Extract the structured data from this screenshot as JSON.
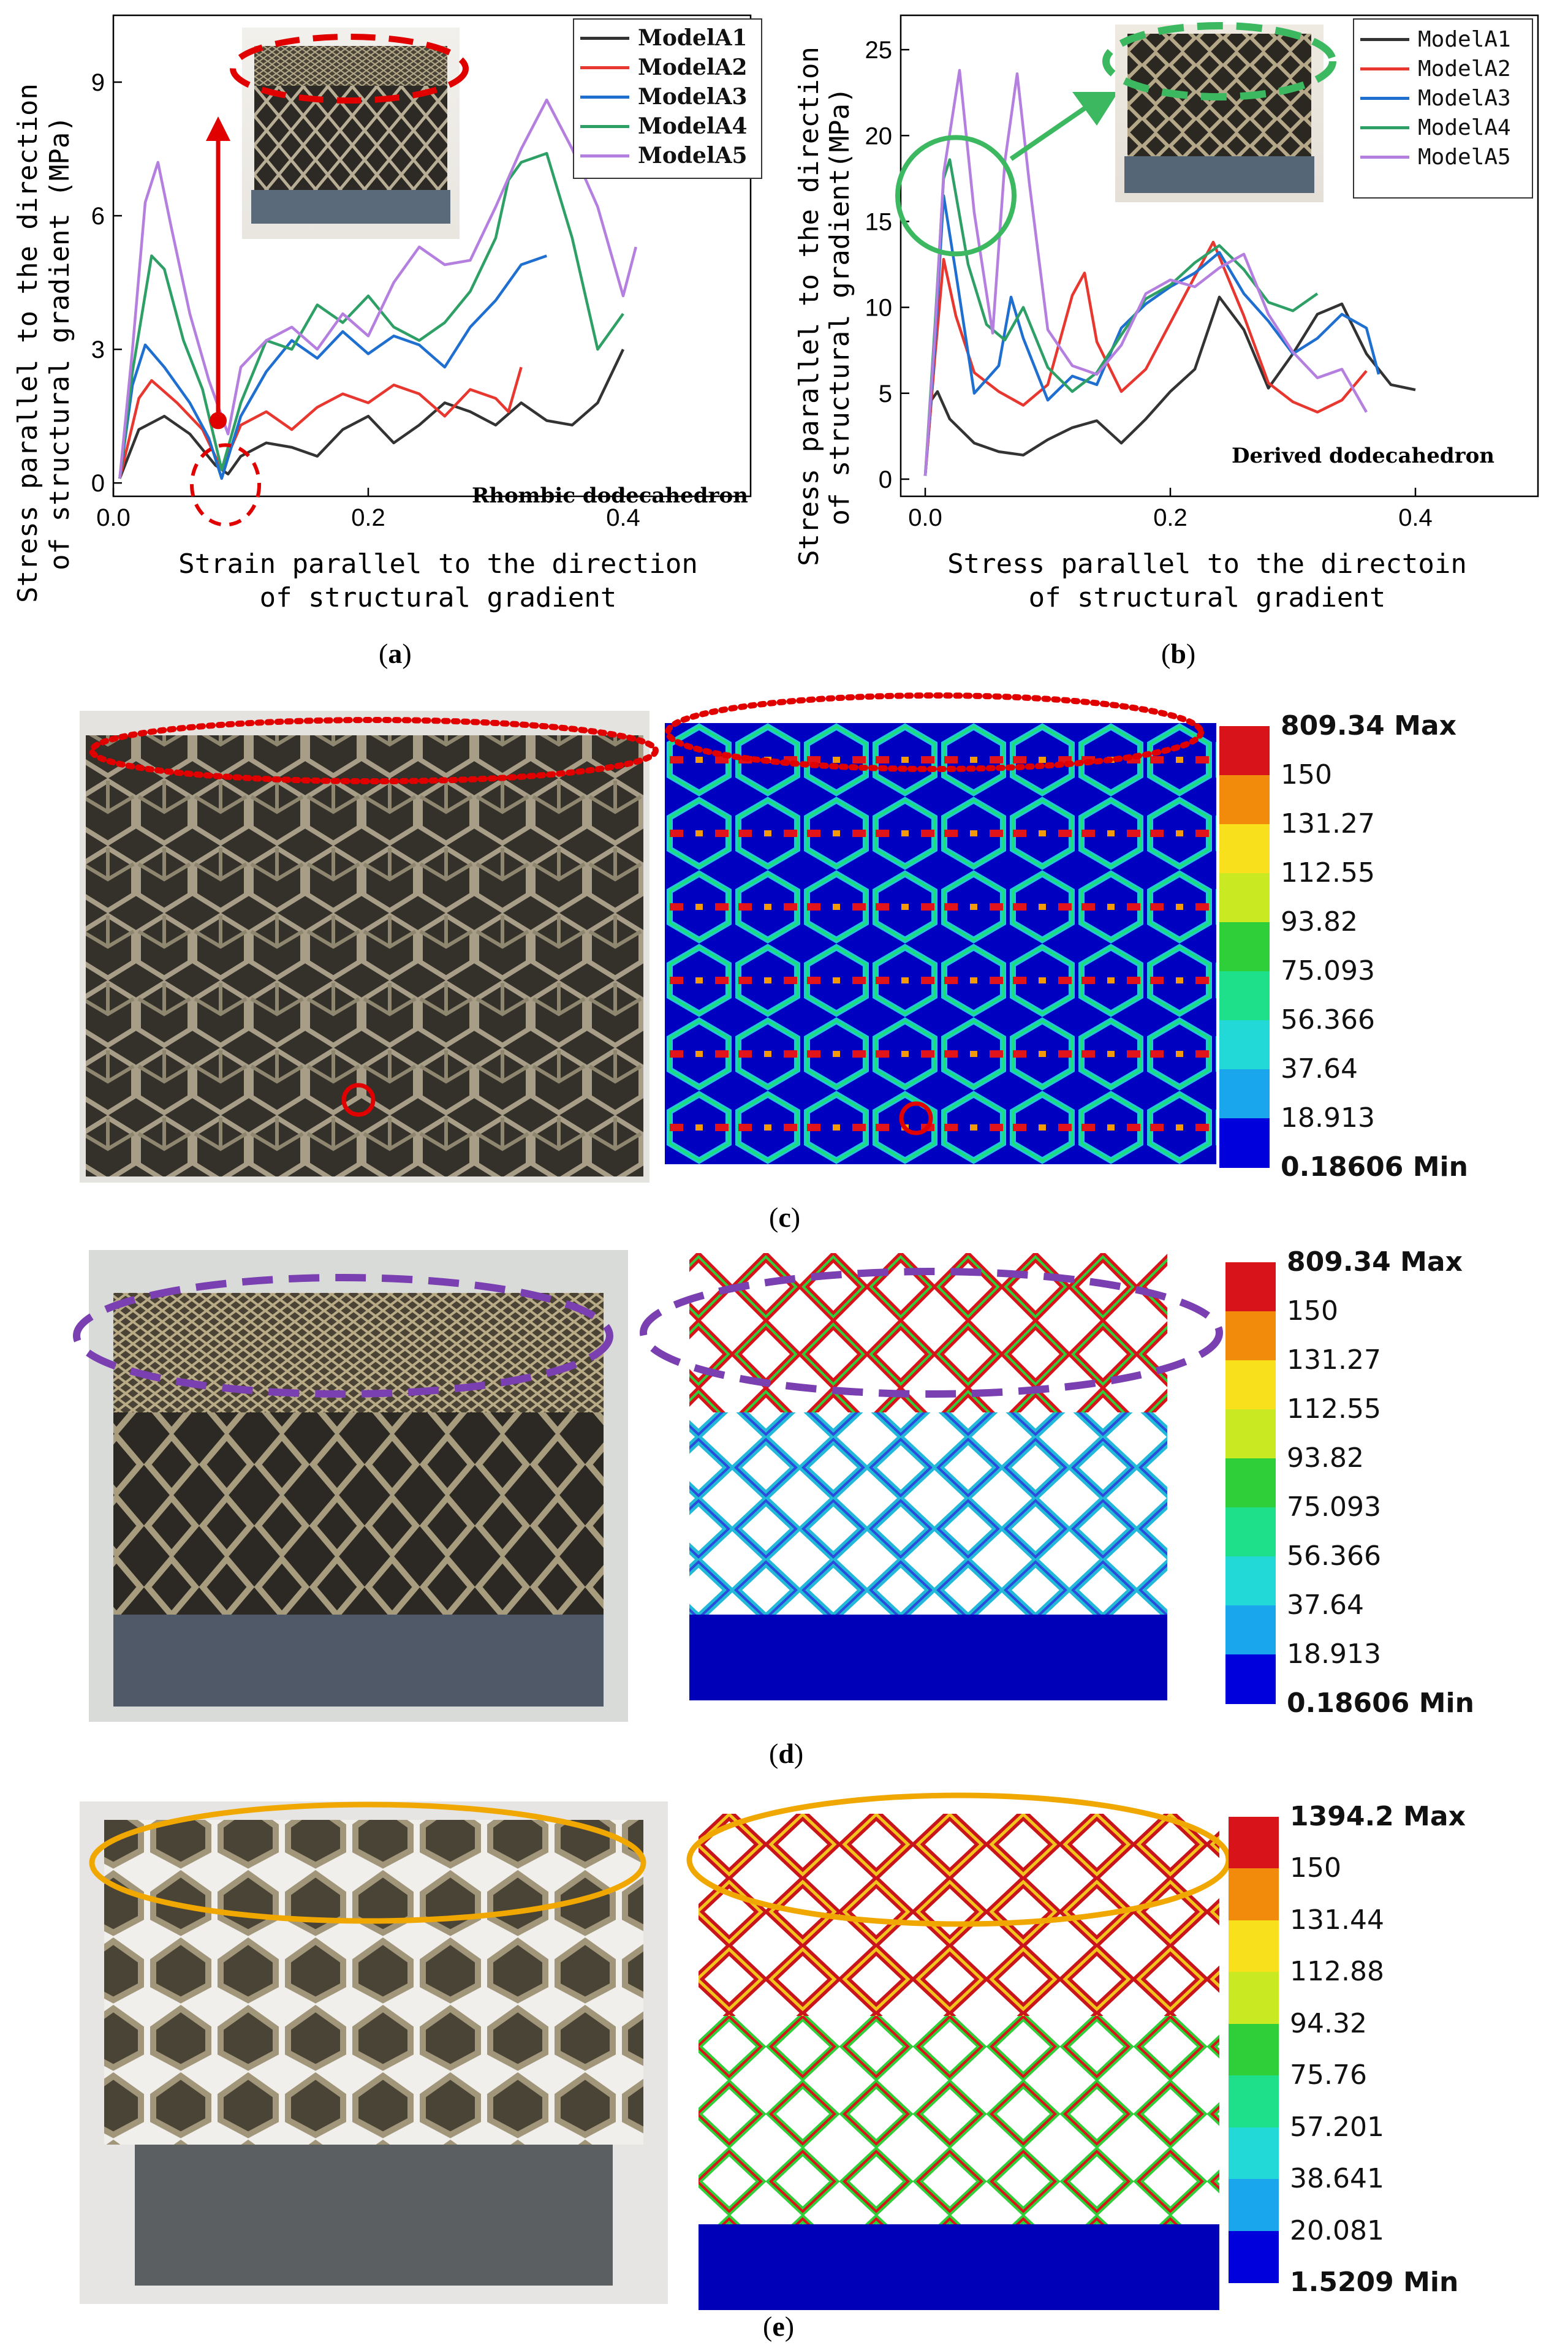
{
  "charts": [
    {
      "id": "a",
      "type": "line",
      "ylabel_line1": "Stress parallel to the direction",
      "ylabel_line2": "of structural gradient (MPa)",
      "xlabel_line1": "Strain parallel to the direction",
      "xlabel_line2": "of structural gradient",
      "annotation": "Rhombic dodecahedron",
      "panel_label": "a",
      "xlim": [
        0,
        0.5
      ],
      "ylim": [
        -0.3,
        10.5
      ],
      "xticks": [
        0.0,
        0.2,
        0.4
      ],
      "xtick_labels": [
        "0.0",
        "0.2",
        "0.4"
      ],
      "yticks": [
        0,
        3,
        6,
        9
      ],
      "ytick_labels": [
        "0",
        "3",
        "6",
        "9"
      ],
      "legend": [
        "ModelA1",
        "ModelA2",
        "ModelA3",
        "ModelA4",
        "ModelA5"
      ]
    },
    {
      "id": "b",
      "type": "line",
      "ylabel_line1": "Stress parallel to the direction",
      "ylabel_line2": "of  structural gradient(MPa)",
      "xlabel_line1": "Stress parallel to the directoin",
      "xlabel_line2": "of structural gradient",
      "annotation": "Derived dodecahedron",
      "panel_label": "b",
      "xlim": [
        -0.02,
        0.5
      ],
      "ylim": [
        -1,
        27
      ],
      "xticks": [
        0.0,
        0.2,
        0.4
      ],
      "xtick_labels": [
        "0.0",
        "0.2",
        "0.4"
      ],
      "yticks": [
        0,
        5,
        10,
        15,
        20,
        25
      ],
      "ytick_labels": [
        "0",
        "5",
        "10",
        "15",
        "20",
        "25"
      ],
      "legend": [
        "ModelA1",
        "ModelA2",
        "ModelA3",
        "ModelA4",
        "ModelA5"
      ]
    }
  ],
  "chart_data": [
    {
      "type": "line",
      "title": "Rhombic dodecahedron",
      "xlabel": "Strain parallel to the direction of structural gradient",
      "ylabel": "Stress parallel to the direction of structural gradient (MPa)",
      "xlim": [
        0,
        0.5
      ],
      "ylim": [
        -0.3,
        10.5
      ],
      "series": [
        {
          "name": "ModelA1",
          "color": "#333333",
          "x": [
            0.005,
            0.02,
            0.04,
            0.06,
            0.08,
            0.09,
            0.1,
            0.12,
            0.14,
            0.16,
            0.18,
            0.2,
            0.22,
            0.24,
            0.26,
            0.28,
            0.3,
            0.32,
            0.34,
            0.36,
            0.38,
            0.4
          ],
          "y": [
            0.1,
            1.2,
            1.5,
            1.1,
            0.4,
            0.2,
            0.6,
            0.9,
            0.8,
            0.6,
            1.2,
            1.5,
            0.9,
            1.3,
            1.8,
            1.6,
            1.3,
            1.8,
            1.4,
            1.3,
            1.8,
            3.0
          ]
        },
        {
          "name": "ModelA2",
          "color": "#e8372f",
          "x": [
            0.005,
            0.02,
            0.03,
            0.05,
            0.07,
            0.085,
            0.1,
            0.12,
            0.14,
            0.16,
            0.18,
            0.2,
            0.22,
            0.24,
            0.26,
            0.28,
            0.3,
            0.31,
            0.32
          ],
          "y": [
            0.1,
            1.9,
            2.3,
            1.8,
            1.2,
            0.3,
            1.3,
            1.6,
            1.2,
            1.7,
            2.0,
            1.8,
            2.2,
            2.0,
            1.5,
            2.1,
            1.9,
            1.6,
            2.6
          ]
        },
        {
          "name": "ModelA3",
          "color": "#1f6fd0",
          "x": [
            0.005,
            0.015,
            0.025,
            0.04,
            0.06,
            0.075,
            0.085,
            0.1,
            0.12,
            0.14,
            0.16,
            0.18,
            0.2,
            0.22,
            0.24,
            0.26,
            0.28,
            0.3,
            0.32,
            0.34
          ],
          "y": [
            0.1,
            2.2,
            3.1,
            2.6,
            1.8,
            1.0,
            0.1,
            1.5,
            2.5,
            3.2,
            2.8,
            3.4,
            2.9,
            3.3,
            3.1,
            2.6,
            3.5,
            4.1,
            4.9,
            5.1
          ]
        },
        {
          "name": "ModelA4",
          "color": "#2ea066",
          "x": [
            0.005,
            0.015,
            0.03,
            0.04,
            0.055,
            0.07,
            0.085,
            0.1,
            0.12,
            0.14,
            0.16,
            0.18,
            0.2,
            0.22,
            0.24,
            0.26,
            0.28,
            0.3,
            0.31,
            0.32,
            0.34,
            0.36,
            0.38,
            0.4
          ],
          "y": [
            0.1,
            2.5,
            5.1,
            4.8,
            3.2,
            2.1,
            0.3,
            1.8,
            3.2,
            3.0,
            4.0,
            3.6,
            4.2,
            3.5,
            3.2,
            3.6,
            4.3,
            5.5,
            6.8,
            7.2,
            7.4,
            5.5,
            3.0,
            3.8
          ]
        },
        {
          "name": "ModelA5",
          "color": "#b57fe0",
          "x": [
            0.005,
            0.015,
            0.025,
            0.035,
            0.045,
            0.06,
            0.075,
            0.09,
            0.1,
            0.12,
            0.14,
            0.16,
            0.18,
            0.2,
            0.22,
            0.24,
            0.26,
            0.28,
            0.3,
            0.32,
            0.34,
            0.36,
            0.38,
            0.4,
            0.41
          ],
          "y": [
            0.1,
            3.0,
            6.3,
            7.2,
            5.8,
            3.8,
            2.3,
            1.1,
            2.6,
            3.2,
            3.5,
            3.0,
            3.8,
            3.3,
            4.5,
            5.3,
            4.9,
            5.0,
            6.2,
            7.5,
            8.6,
            7.5,
            6.2,
            4.2,
            5.3
          ]
        }
      ]
    },
    {
      "type": "line",
      "title": "Derived dodecahedron",
      "xlabel": "Stress parallel to the directoin of structural gradient",
      "ylabel": "Stress parallel to the direction of structural gradient (MPa)",
      "xlim": [
        -0.02,
        0.5
      ],
      "ylim": [
        -1,
        27
      ],
      "series": [
        {
          "name": "ModelA1",
          "color": "#333333",
          "x": [
            0.0,
            0.005,
            0.01,
            0.02,
            0.04,
            0.06,
            0.08,
            0.1,
            0.12,
            0.14,
            0.16,
            0.18,
            0.2,
            0.22,
            0.24,
            0.26,
            0.28,
            0.3,
            0.32,
            0.34,
            0.36,
            0.38,
            0.4
          ],
          "y": [
            0.2,
            4.6,
            5.1,
            3.5,
            2.1,
            1.6,
            1.4,
            2.3,
            3.0,
            3.4,
            2.1,
            3.5,
            5.1,
            6.4,
            10.6,
            8.7,
            5.3,
            7.3,
            9.6,
            10.2,
            7.3,
            5.5,
            5.2
          ]
        },
        {
          "name": "ModelA2",
          "color": "#e8372f",
          "x": [
            0.0,
            0.008,
            0.015,
            0.025,
            0.04,
            0.06,
            0.08,
            0.1,
            0.12,
            0.13,
            0.14,
            0.16,
            0.18,
            0.2,
            0.22,
            0.235,
            0.26,
            0.28,
            0.3,
            0.32,
            0.34,
            0.36
          ],
          "y": [
            0.2,
            7.2,
            12.8,
            9.5,
            6.2,
            5.1,
            4.3,
            5.5,
            10.7,
            12.0,
            8.0,
            5.1,
            6.4,
            9.1,
            11.8,
            13.8,
            9.5,
            5.6,
            4.5,
            3.9,
            4.6,
            6.3
          ]
        },
        {
          "name": "ModelA3",
          "color": "#1f6fd0",
          "x": [
            0.0,
            0.008,
            0.015,
            0.025,
            0.04,
            0.06,
            0.07,
            0.08,
            0.1,
            0.12,
            0.14,
            0.16,
            0.18,
            0.2,
            0.22,
            0.24,
            0.26,
            0.28,
            0.3,
            0.32,
            0.34,
            0.36,
            0.37
          ],
          "y": [
            0.2,
            8.0,
            16.5,
            12.0,
            5.0,
            6.6,
            10.6,
            8.2,
            4.6,
            6.0,
            5.5,
            8.8,
            10.2,
            11.2,
            12.0,
            13.2,
            10.8,
            9.2,
            7.3,
            8.2,
            9.6,
            8.8,
            6.1
          ]
        },
        {
          "name": "ModelA4",
          "color": "#2ea066",
          "x": [
            0.0,
            0.008,
            0.015,
            0.02,
            0.035,
            0.05,
            0.065,
            0.08,
            0.1,
            0.12,
            0.14,
            0.16,
            0.18,
            0.2,
            0.22,
            0.24,
            0.26,
            0.28,
            0.3,
            0.32
          ],
          "y": [
            0.2,
            9.0,
            17.5,
            18.6,
            12.5,
            9.0,
            8.1,
            10.0,
            6.5,
            5.1,
            6.2,
            8.4,
            10.5,
            11.3,
            12.6,
            13.6,
            12.2,
            10.3,
            9.8,
            10.8
          ]
        },
        {
          "name": "ModelA5",
          "color": "#b57fe0",
          "x": [
            0.0,
            0.008,
            0.015,
            0.028,
            0.04,
            0.055,
            0.065,
            0.075,
            0.085,
            0.1,
            0.12,
            0.14,
            0.16,
            0.18,
            0.2,
            0.22,
            0.24,
            0.26,
            0.28,
            0.3,
            0.32,
            0.34,
            0.36
          ],
          "y": [
            0.2,
            8.5,
            17.8,
            23.8,
            15.5,
            8.5,
            18.5,
            23.6,
            17.2,
            8.7,
            6.6,
            6.1,
            7.8,
            10.8,
            11.6,
            11.2,
            12.3,
            13.1,
            9.6,
            7.4,
            5.9,
            6.4,
            3.9
          ]
        }
      ]
    }
  ],
  "legend_a": [
    "ModelA1",
    "ModelA2",
    "ModelA3",
    "ModelA4",
    "ModelA5"
  ],
  "legend_b": [
    "ModelA1",
    "ModelA2",
    "ModelA3",
    "ModelA4",
    "ModelA5"
  ],
  "panels": {
    "c": {
      "label": "c",
      "scale": [
        "809.34 Max",
        "150",
        "131.27",
        "112.55",
        "93.82",
        "75.093",
        "56.366",
        "37.64",
        "18.913",
        "0.18606 Min"
      ]
    },
    "d": {
      "label": "d",
      "scale": [
        "809.34 Max",
        "150",
        "131.27",
        "112.55",
        "93.82",
        "75.093",
        "56.366",
        "37.64",
        "18.913",
        "0.18606 Min"
      ]
    },
    "e": {
      "label": "e",
      "scale": [
        "1394.2 Max",
        "150",
        "131.44",
        "112.88",
        "94.32",
        "75.76",
        "57.201",
        "38.641",
        "20.081",
        "1.5209 Min"
      ]
    }
  },
  "colors": {
    "scale_bands": [
      "#d8131a",
      "#f28a0c",
      "#f8e11c",
      "#c9ea23",
      "#2fcf3a",
      "#1ee08a",
      "#22d9d8",
      "#1aa6ec",
      "#0000dd"
    ],
    "red_mark": "#e00000",
    "purple_mark": "#7a3fb0",
    "orange_mark": "#f0a800",
    "green_mark": "#3cb860"
  }
}
